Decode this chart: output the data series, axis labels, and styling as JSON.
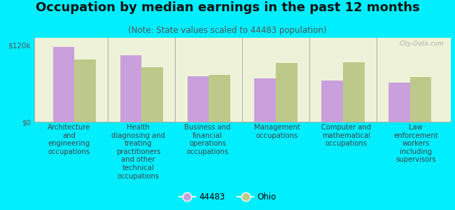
{
  "title": "Occupation by median earnings in the past 12 months",
  "subtitle": "(Note: State values scaled to 44483 population)",
  "categories": [
    "Architecture\nand\nengineering\noccupations",
    "Health\ndiagnosing and\ntreating\npractitioners\nand other\ntechnical\noccupations",
    "Business and\nfinancial\noperations\noccupations",
    "Management\noccupations",
    "Computer and\nmathematical\noccupations",
    "Law\nenforcement\nworkers\nincluding\nsupervisors"
  ],
  "values_44483": [
    118000,
    105000,
    72000,
    68000,
    65000,
    62000
  ],
  "values_ohio": [
    98000,
    86000,
    74000,
    92000,
    94000,
    70000
  ],
  "bar_color_44483": "#c9a0dc",
  "bar_color_ohio": "#bdc98a",
  "background_outer": "#00eeff",
  "background_inner": "#eef2d8",
  "ytick_labels": [
    "$0",
    "$120k"
  ],
  "yticks": [
    0,
    120000
  ],
  "ylim": [
    0,
    132000
  ],
  "legend_label_44483": "44483",
  "legend_label_ohio": "Ohio",
  "watermark": "City-Data.com",
  "title_fontsize": 13,
  "subtitle_fontsize": 8.5,
  "cat_label_fontsize": 7.2,
  "ytick_fontsize": 7.5,
  "legend_fontsize": 8.5
}
